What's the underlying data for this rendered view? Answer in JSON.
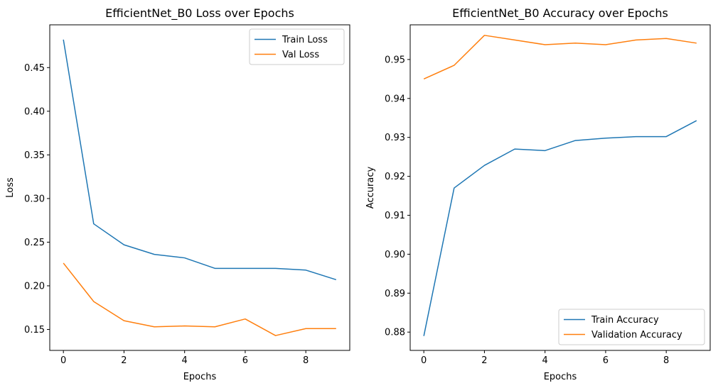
{
  "chart_data": [
    {
      "type": "line",
      "title": "EfficientNet_B0 Loss over Epochs",
      "xlabel": "Epochs",
      "ylabel": "Loss",
      "xlim": [
        -0.45,
        9.45
      ],
      "ylim": [
        0.126,
        0.499
      ],
      "xticks": [
        0,
        2,
        4,
        6,
        8
      ],
      "xtick_labels": [
        "0",
        "2",
        "4",
        "6",
        "8"
      ],
      "yticks": [
        0.15,
        0.2,
        0.25,
        0.3,
        0.35,
        0.4,
        0.45
      ],
      "ytick_labels": [
        "0.15",
        "0.20",
        "0.25",
        "0.30",
        "0.35",
        "0.40",
        "0.45"
      ],
      "legend_position": "top-right",
      "grid": false,
      "x": [
        0,
        1,
        2,
        3,
        4,
        5,
        6,
        7,
        8,
        9
      ],
      "series": [
        {
          "name": "Train Loss",
          "color": "#1f77b4",
          "values": [
            0.482,
            0.271,
            0.247,
            0.236,
            0.232,
            0.22,
            0.22,
            0.22,
            0.218,
            0.207
          ]
        },
        {
          "name": "Val Loss",
          "color": "#ff7f0e",
          "values": [
            0.226,
            0.182,
            0.16,
            0.153,
            0.154,
            0.153,
            0.162,
            0.143,
            0.151,
            0.151
          ]
        }
      ]
    },
    {
      "type": "line",
      "title": "EfficientNet_B0 Accuracy over Epochs",
      "xlabel": "Epochs",
      "ylabel": "Accuracy",
      "xlim": [
        -0.45,
        9.45
      ],
      "ylim": [
        0.8753,
        0.9589
      ],
      "xticks": [
        0,
        2,
        4,
        6,
        8
      ],
      "xtick_labels": [
        "0",
        "2",
        "4",
        "6",
        "8"
      ],
      "yticks": [
        0.88,
        0.89,
        0.9,
        0.91,
        0.92,
        0.93,
        0.94,
        0.95
      ],
      "ytick_labels": [
        "0.88",
        "0.89",
        "0.90",
        "0.91",
        "0.92",
        "0.93",
        "0.94",
        "0.95"
      ],
      "legend_position": "bottom-right",
      "grid": false,
      "x": [
        0,
        1,
        2,
        3,
        4,
        5,
        6,
        7,
        8,
        9
      ],
      "series": [
        {
          "name": "Train Accuracy",
          "color": "#1f77b4",
          "values": [
            0.879,
            0.917,
            0.9228,
            0.927,
            0.9266,
            0.9292,
            0.9298,
            0.9302,
            0.9302,
            0.9343
          ]
        },
        {
          "name": "Validation Accuracy",
          "color": "#ff7f0e",
          "values": [
            0.945,
            0.9485,
            0.9562,
            0.955,
            0.9538,
            0.9542,
            0.9538,
            0.955,
            0.9554,
            0.9542
          ]
        }
      ]
    }
  ]
}
